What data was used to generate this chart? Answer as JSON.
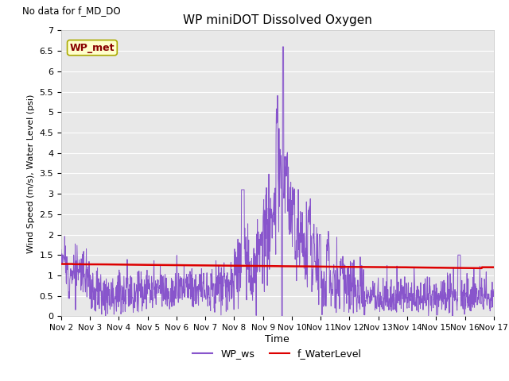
{
  "title": "WP miniDOT Dissolved Oxygen",
  "no_data_text": "No data for f_MD_DO",
  "ylabel": "Wind Speed (m/s), Water Level (psi)",
  "xlabel": "Time",
  "legend_labels": [
    "WP_ws",
    "f_WaterLevel"
  ],
  "wp_met_label": "WP_met",
  "wp_met_facecolor": "#ffffcc",
  "wp_met_edgecolor": "#aaaa00",
  "wp_met_textcolor": "#880000",
  "ylim": [
    0.0,
    7.0
  ],
  "yticks": [
    0.0,
    0.5,
    1.0,
    1.5,
    2.0,
    2.5,
    3.0,
    3.5,
    4.0,
    4.5,
    5.0,
    5.5,
    6.0,
    6.5,
    7.0
  ],
  "xtick_labels": [
    "Nov 2",
    "Nov 3",
    "Nov 4",
    "Nov 5",
    "Nov 6",
    "Nov 7",
    "Nov 8",
    "Nov 9",
    "Nov 10",
    "Nov 11",
    "Nov 12",
    "Nov 13",
    "Nov 14",
    "Nov 15",
    "Nov 16",
    "Nov 17"
  ],
  "xtick_positions": [
    0,
    1,
    2,
    3,
    4,
    5,
    6,
    7,
    8,
    9,
    10,
    11,
    12,
    13,
    14,
    15
  ],
  "bg_color": "#e8e8e8",
  "grid_color": "#ffffff",
  "ws_color": "#8855cc",
  "wl_color": "#dd0000",
  "ws_linewidth": 0.7,
  "wl_linewidth": 1.8
}
